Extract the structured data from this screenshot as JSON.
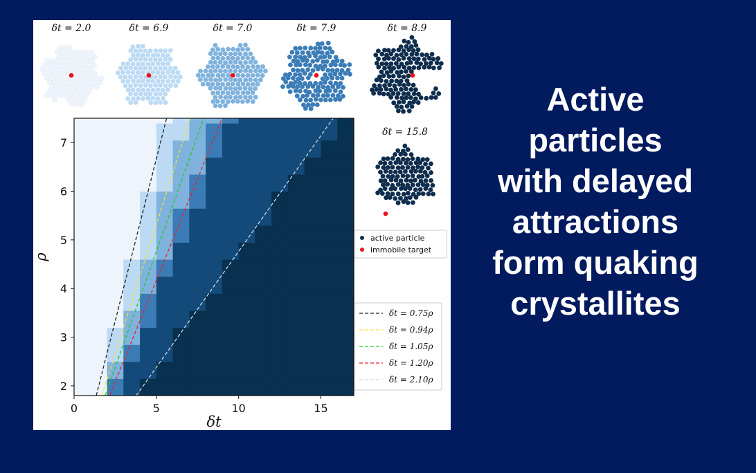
{
  "headline": {
    "lines": [
      "Active",
      "particles",
      "with delayed",
      "attractions",
      "form quaking",
      "crystallites"
    ]
  },
  "colors": {
    "background": "#021a5e",
    "phase_levels": [
      "#eef4fb",
      "#bcdaf4",
      "#7fb2dc",
      "#3b7cb6",
      "#134a79",
      "#08314f"
    ],
    "target": "#e8121b",
    "active_particle": "#0f2d4d"
  },
  "snapshots": [
    {
      "label": "δt = 2.0",
      "level": 0
    },
    {
      "label": "δt = 6.9",
      "level": 1
    },
    {
      "label": "δt = 7.0",
      "level": 2
    },
    {
      "label": "δt = 7.9",
      "level": 3
    },
    {
      "label": "δt = 8.9",
      "level": 5
    },
    {
      "label": "δt = 15.8",
      "level": 5
    }
  ],
  "legend_markers": [
    {
      "label": "active particle",
      "color": "#0f2d4d"
    },
    {
      "label": "immobile target",
      "color": "#e8121b"
    }
  ],
  "chart_data": {
    "type": "heatmap",
    "xlabel": "δt",
    "ylabel": "ρ",
    "xlim": [
      0,
      17
    ],
    "ylim": [
      1.8,
      7.5
    ],
    "xticks": [
      0,
      5,
      10,
      15
    ],
    "yticks": [
      2,
      3,
      4,
      5,
      6,
      7
    ],
    "cell_width": 1,
    "cell_height": 0.35,
    "regions": [
      {
        "level": 0,
        "name": "low δt region"
      },
      {
        "level": 1
      },
      {
        "level": 2
      },
      {
        "level": 3
      },
      {
        "level": 4
      },
      {
        "level": 5,
        "name": "high δt region"
      }
    ],
    "boundaries_x_at_rho": {
      "note_rho": [
        1.8,
        7.5
      ],
      "b0": [
        1.45,
        5.6
      ],
      "b1": [
        1.9,
        6.9
      ],
      "b2": [
        2.3,
        8.6
      ],
      "b3": [
        2.8,
        9.5
      ],
      "b4": [
        3.75,
        16.1
      ]
    },
    "guide_lines": [
      {
        "label": "δt = 0.75ρ",
        "slope": 0.75,
        "color": "#222222"
      },
      {
        "label": "δt = 0.94ρ",
        "slope": 0.94,
        "color": "#f2e33a"
      },
      {
        "label": "δt = 1.05ρ",
        "slope": 1.05,
        "color": "#22cc22"
      },
      {
        "label": "δt = 1.20ρ",
        "slope": 1.2,
        "color": "#e8232a"
      },
      {
        "label": "δt = 2.10ρ",
        "slope": 2.1,
        "color": "#d0d6dc"
      }
    ]
  }
}
